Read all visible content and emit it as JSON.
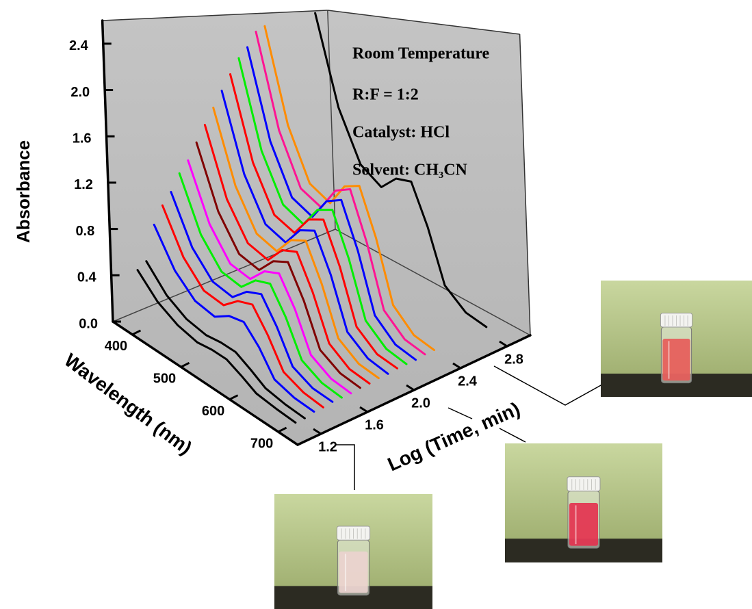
{
  "chart_data": {
    "type": "waterfall3d",
    "annotations": [
      "Room Temperature",
      "R:F = 1:2",
      "Catalyst: HCl",
      "Solvent: CH₃CN"
    ],
    "xlabel": "Wavelength (nm)",
    "ylabel": "Log (Time, min)",
    "zlabel": "Absorbance",
    "x": [
      380,
      420,
      460,
      500,
      530,
      560,
      590,
      620,
      660,
      700
    ],
    "xlim": [
      360,
      740
    ],
    "xticks": [
      400,
      500,
      600,
      700
    ],
    "ylim": [
      1.0,
      3.0
    ],
    "yticks": [
      1.2,
      1.6,
      {
        "value": 2,
        "label": "2.0"
      },
      2.4,
      2.8
    ],
    "zlim": [
      0,
      2.6
    ],
    "zticks": [
      {
        "value": 0,
        "label": "0.0"
      },
      0.4,
      0.8,
      1.2,
      1.6,
      {
        "value": 2,
        "label": "2.0"
      },
      2.4
    ],
    "series": [
      {
        "time": 1.15,
        "color": "#000000",
        "values": [
          0.45,
          0.28,
          0.19,
          0.15,
          0.17,
          0.17,
          0.11,
          0.04,
          0.02,
          0.01
        ]
      },
      {
        "time": 1.23,
        "color": "#000000",
        "values": [
          0.5,
          0.31,
          0.21,
          0.18,
          0.2,
          0.2,
          0.13,
          0.05,
          0.02,
          0.01
        ]
      },
      {
        "time": 1.31,
        "color": "#0000ff",
        "values": [
          0.8,
          0.5,
          0.34,
          0.31,
          0.4,
          0.43,
          0.29,
          0.09,
          0.04,
          0.03
        ]
      },
      {
        "time": 1.39,
        "color": "#ff0000",
        "values": [
          0.95,
          0.59,
          0.4,
          0.38,
          0.5,
          0.55,
          0.36,
          0.12,
          0.05,
          0.03
        ]
      },
      {
        "time": 1.47,
        "color": "#0000ff",
        "values": [
          1.05,
          0.65,
          0.45,
          0.42,
          0.55,
          0.61,
          0.4,
          0.13,
          0.05,
          0.04
        ]
      },
      {
        "time": 1.55,
        "color": "#00ee00",
        "values": [
          1.2,
          0.74,
          0.51,
          0.48,
          0.62,
          0.67,
          0.45,
          0.15,
          0.06,
          0.04
        ]
      },
      {
        "time": 1.63,
        "color": "#ff00ff",
        "values": [
          1.3,
          0.81,
          0.55,
          0.52,
          0.67,
          0.73,
          0.49,
          0.16,
          0.06,
          0.04
        ]
      },
      {
        "time": 1.71,
        "color": "#800000",
        "values": [
          1.45,
          0.9,
          0.61,
          0.57,
          0.73,
          0.8,
          0.53,
          0.17,
          0.07,
          0.05
        ]
      },
      {
        "time": 1.79,
        "color": "#ff0000",
        "values": [
          1.6,
          0.99,
          0.68,
          0.63,
          0.8,
          0.86,
          0.57,
          0.19,
          0.07,
          0.05
        ]
      },
      {
        "time": 1.87,
        "color": "#ff8c00",
        "values": [
          1.75,
          1.09,
          0.74,
          0.68,
          0.86,
          0.93,
          0.61,
          0.2,
          0.08,
          0.06
        ]
      },
      {
        "time": 1.95,
        "color": "#0000ff",
        "values": [
          1.9,
          1.18,
          0.8,
          0.73,
          0.92,
          0.99,
          0.66,
          0.22,
          0.09,
          0.06
        ]
      },
      {
        "time": 2.03,
        "color": "#ff0000",
        "values": [
          2.05,
          1.27,
          0.86,
          0.79,
          0.99,
          1.06,
          0.7,
          0.23,
          0.09,
          0.07
        ]
      },
      {
        "time": 2.11,
        "color": "#00ee00",
        "values": [
          2.2,
          1.36,
          0.93,
          0.84,
          1.05,
          1.12,
          0.74,
          0.25,
          0.1,
          0.07
        ]
      },
      {
        "time": 2.19,
        "color": "#0000ff",
        "values": [
          2.3,
          1.43,
          0.97,
          0.88,
          1.1,
          1.18,
          0.78,
          0.26,
          0.1,
          0.07
        ]
      },
      {
        "time": 2.27,
        "color": "#ff1493",
        "values": [
          2.45,
          1.52,
          1.03,
          0.94,
          1.17,
          1.25,
          0.82,
          0.27,
          0.11,
          0.08
        ]
      },
      {
        "time": 2.35,
        "color": "#ff8c00",
        "values": [
          2.5,
          1.55,
          1.05,
          0.95,
          1.18,
          1.25,
          0.83,
          0.28,
          0.11,
          0.08
        ]
      },
      {
        "time": 2.8,
        "color": "#000000",
        "values": [
          2.6,
          1.61,
          1.08,
          0.93,
          1.08,
          1.11,
          0.73,
          0.25,
          0.1,
          0.07
        ]
      }
    ]
  }
}
